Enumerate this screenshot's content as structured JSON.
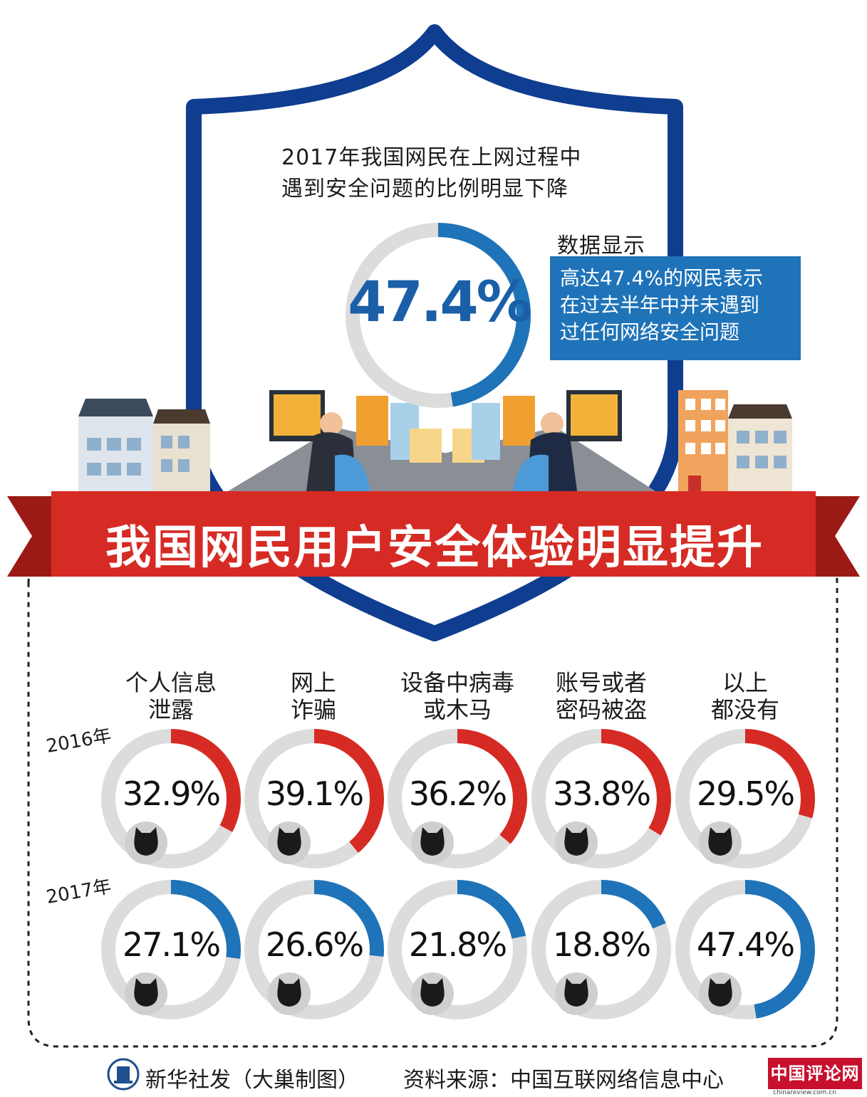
{
  "header": {
    "title_line1": "2017年我国网民在上网过程中",
    "title_line2": "遇到安全问题的比例明显下降",
    "highlight_value": "47.4%",
    "highlight_fraction": 0.474,
    "callout_label": "数据显示",
    "callout_lines": [
      "高达47.4%的网民表示",
      "在过去半年中并未遇到",
      "过任何网络安全问题"
    ]
  },
  "banner": {
    "text": "我国网民用户安全体验明显提升"
  },
  "colors": {
    "blue": "#1f73b8",
    "dark_blue": "#0f3d8f",
    "red": "#d62b24",
    "ring_gray": "#dcdcdc",
    "brand_red": "#c8102e"
  },
  "chart_data": {
    "type": "donut",
    "categories": [
      [
        "个人信息",
        "泄露"
      ],
      [
        "网上",
        "诈骗"
      ],
      [
        "设备中病毒",
        "或木马"
      ],
      [
        "账号或者",
        "密码被盗"
      ],
      [
        "以上",
        "都没有"
      ]
    ],
    "series": [
      {
        "name": "2016年",
        "labels": [
          "32.9%",
          "39.1%",
          "36.2%",
          "33.8%",
          "29.5%"
        ],
        "values": [
          32.9,
          39.1,
          36.2,
          33.8,
          29.5
        ],
        "color": "#d62b24"
      },
      {
        "name": "2017年",
        "labels": [
          "27.1%",
          "26.6%",
          "21.8%",
          "18.8%",
          "47.4%"
        ],
        "values": [
          27.1,
          26.6,
          21.8,
          18.8,
          47.4
        ],
        "color": "#1f73b8"
      }
    ],
    "unit": "%",
    "ylim": [
      0,
      100
    ]
  },
  "footer": {
    "credit": "新华社发（大巢制图）",
    "source": "资料来源：中国互联网络信息中心",
    "brand": "中国评论网",
    "brand_url": "chinareview.com.cn"
  }
}
